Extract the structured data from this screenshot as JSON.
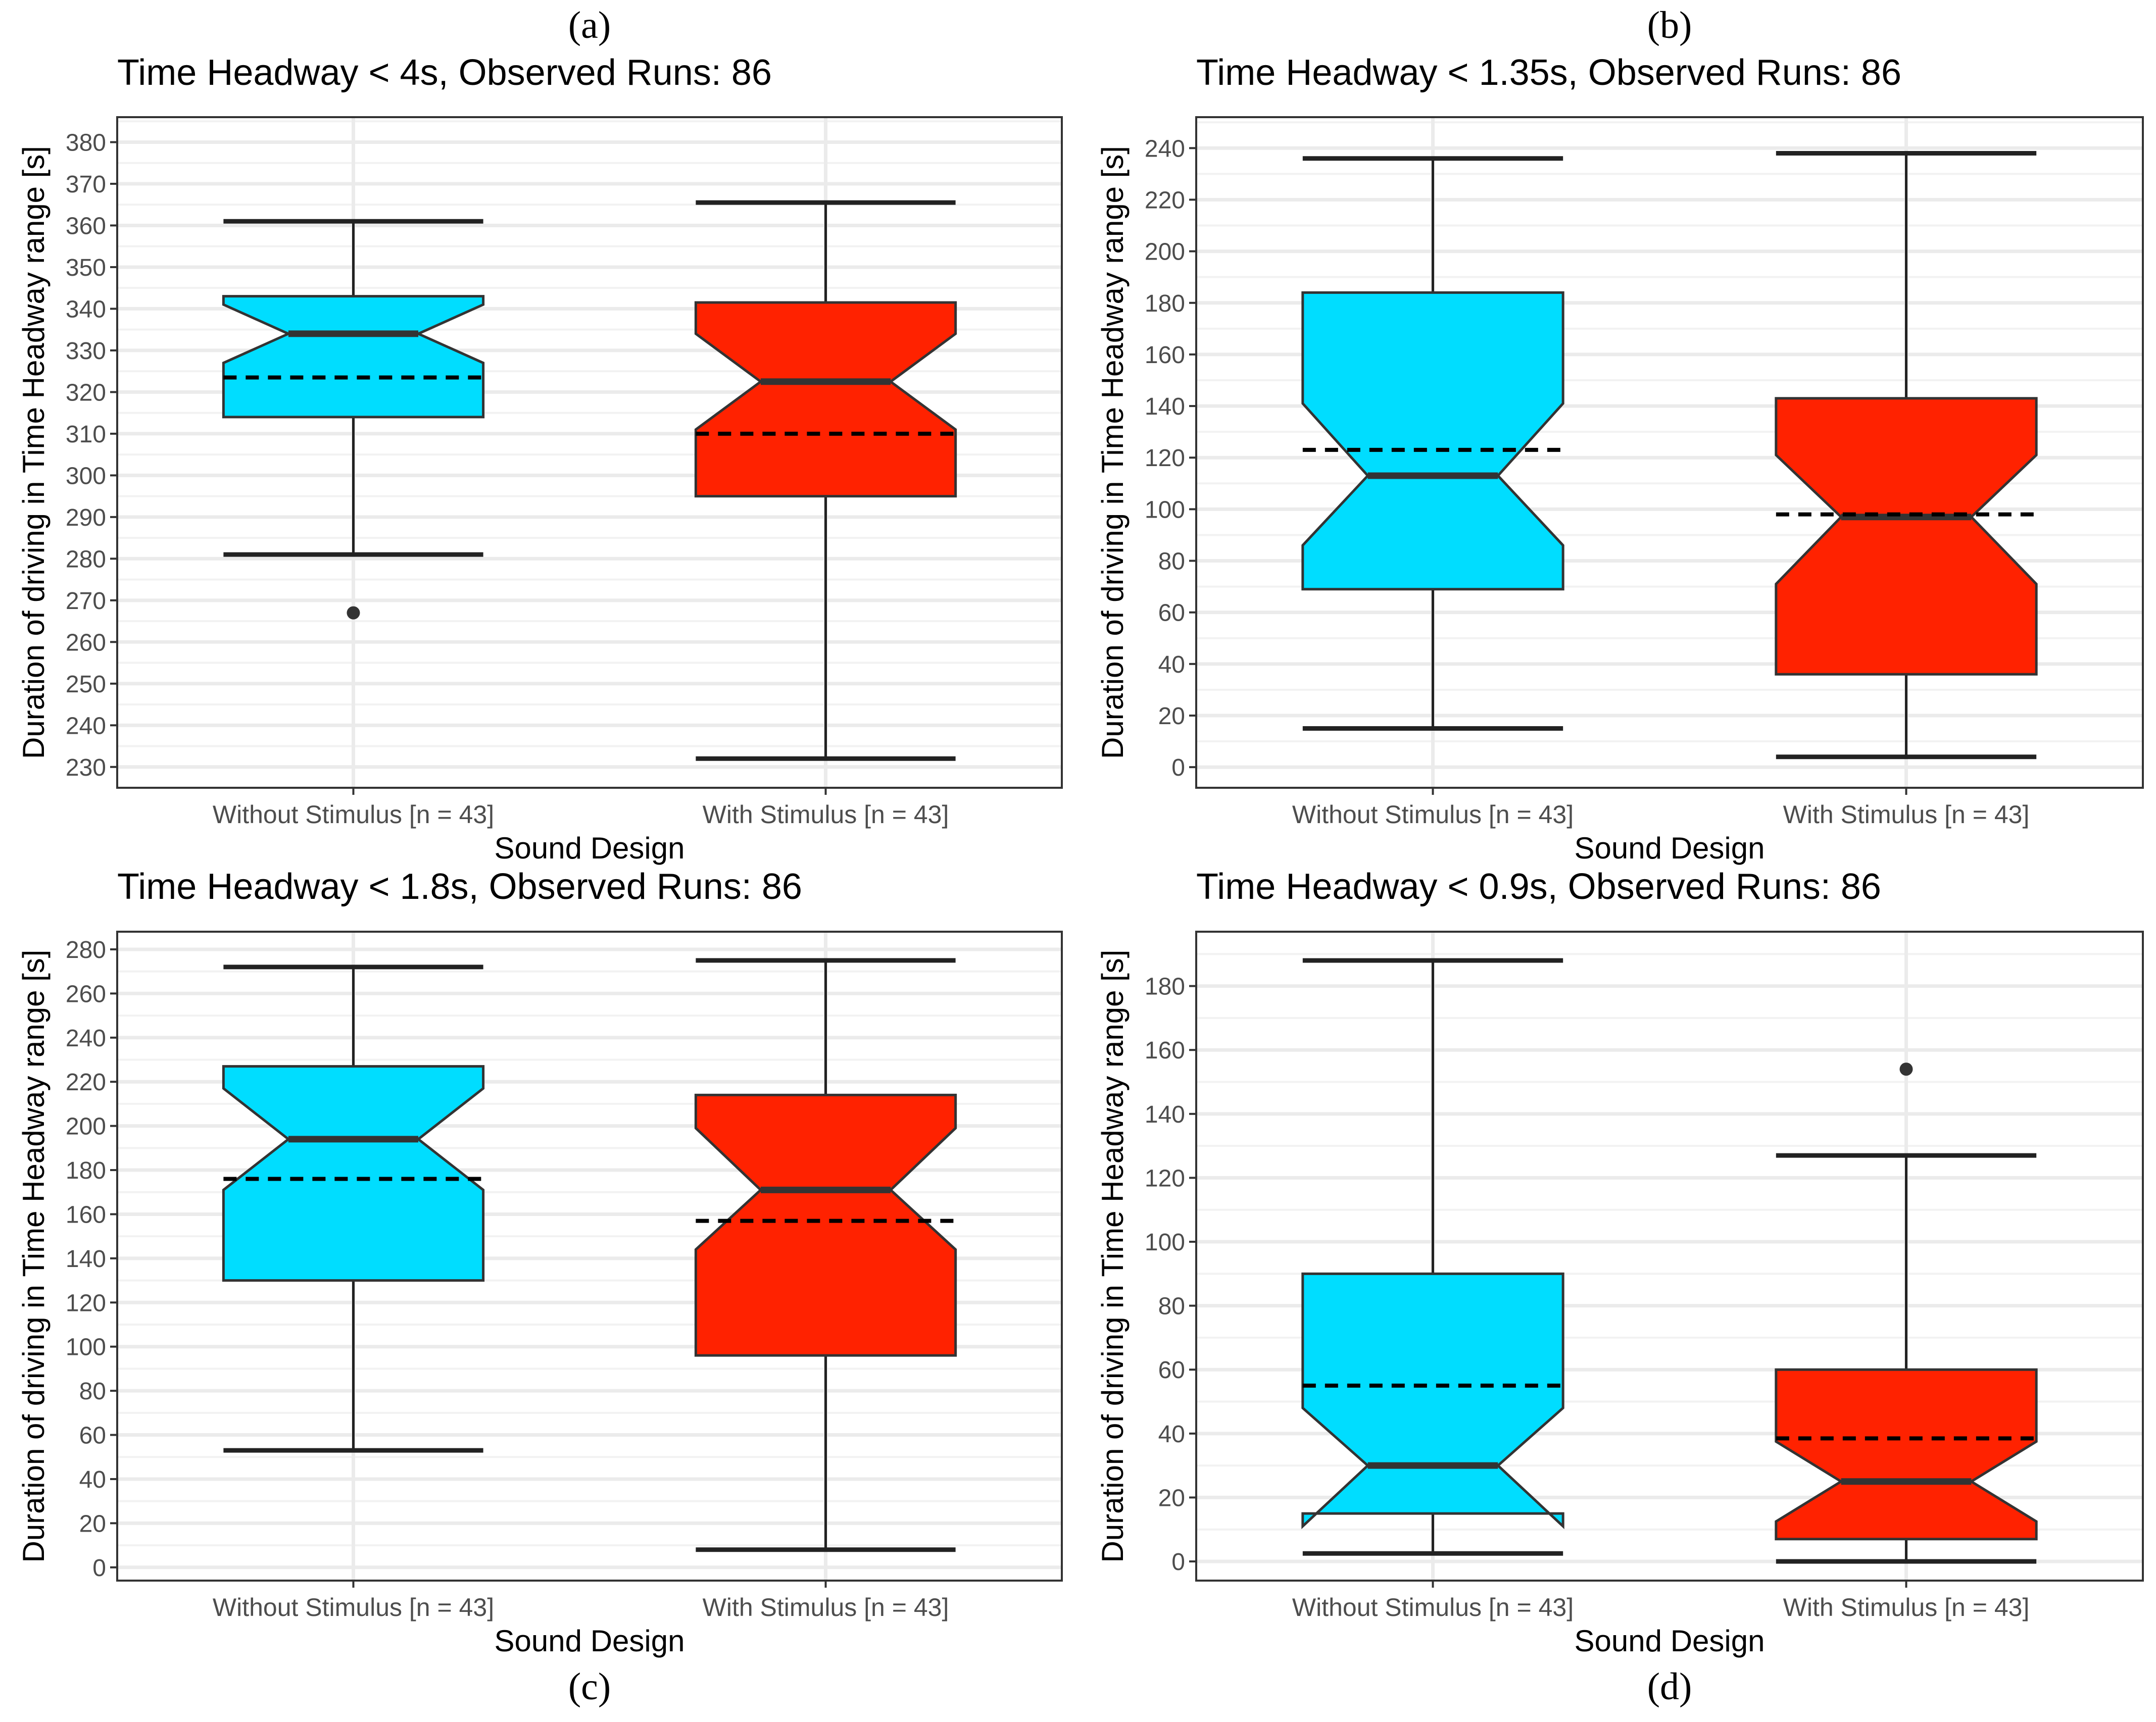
{
  "chart_data": [
    {
      "type": "boxplot",
      "panel_label": "(a)",
      "title": "Time Headway < 4s,  Observed Runs: 86",
      "xlabel": "Sound Design",
      "ylabel": "Duration of driving in Time Headway range [s]",
      "ylim": [
        225,
        386
      ],
      "yticks": [
        230,
        240,
        250,
        260,
        270,
        280,
        290,
        300,
        310,
        320,
        330,
        340,
        350,
        360,
        370,
        380
      ],
      "categories": [
        "Without Stimulus [n = 43]",
        "With Stimulus [n = 43]"
      ],
      "boxes": [
        {
          "name": "Without Stimulus [n = 43]",
          "color": "#00DDFF",
          "whisker_low": 281,
          "q1": 314,
          "notch_low": 327,
          "median": 334,
          "notch_high": 341,
          "q3": 343,
          "whisker_high": 361,
          "mean": 323.5,
          "outliers": [
            267
          ]
        },
        {
          "name": "With Stimulus [n = 43]",
          "color": "#FF2200",
          "whisker_low": 232,
          "q1": 295,
          "notch_low": 311,
          "median": 322.5,
          "notch_high": 334,
          "q3": 341.5,
          "whisker_high": 365.5,
          "mean": 310,
          "outliers": []
        }
      ]
    },
    {
      "type": "boxplot",
      "panel_label": "(b)",
      "title": "Time Headway < 1.35s,  Observed Runs: 86",
      "xlabel": "Sound Design",
      "ylabel": "Duration of driving in Time Headway range [s]",
      "ylim": [
        -8,
        252
      ],
      "yticks": [
        0,
        20,
        40,
        60,
        80,
        100,
        120,
        140,
        160,
        180,
        200,
        220,
        240
      ],
      "categories": [
        "Without Stimulus [n = 43]",
        "With Stimulus [n = 43]"
      ],
      "boxes": [
        {
          "name": "Without Stimulus [n = 43]",
          "color": "#00DDFF",
          "whisker_low": 15,
          "q1": 69,
          "notch_low": 86,
          "median": 113,
          "notch_high": 141,
          "q3": 184,
          "whisker_high": 236,
          "mean": 123,
          "outliers": []
        },
        {
          "name": "With Stimulus [n = 43]",
          "color": "#FF2200",
          "whisker_low": 4,
          "q1": 36,
          "notch_low": 71,
          "median": 97,
          "notch_high": 121,
          "q3": 143,
          "whisker_high": 238,
          "mean": 98,
          "outliers": []
        }
      ]
    },
    {
      "type": "boxplot",
      "panel_label": "(c)",
      "title": "Time Headway < 1.8s,  Observed Runs: 86",
      "xlabel": "Sound Design",
      "ylabel": "Duration of driving in Time Headway range [s]",
      "ylim": [
        -6,
        288
      ],
      "yticks": [
        0,
        20,
        40,
        60,
        80,
        100,
        120,
        140,
        160,
        180,
        200,
        220,
        240,
        260,
        280
      ],
      "categories": [
        "Without Stimulus [n = 43]",
        "With Stimulus [n = 43]"
      ],
      "boxes": [
        {
          "name": "Without Stimulus [n = 43]",
          "color": "#00DDFF",
          "whisker_low": 53,
          "q1": 130,
          "notch_low": 171,
          "median": 194,
          "notch_high": 217,
          "q3": 227,
          "whisker_high": 272,
          "mean": 176,
          "outliers": []
        },
        {
          "name": "With Stimulus [n = 43]",
          "color": "#FF2200",
          "whisker_low": 8,
          "q1": 96,
          "notch_low": 144,
          "median": 171,
          "notch_high": 199,
          "q3": 214,
          "whisker_high": 275,
          "mean": 157,
          "outliers": []
        }
      ]
    },
    {
      "type": "boxplot",
      "panel_label": "(d)",
      "title": "Time Headway < 0.9s,  Observed Runs: 86",
      "xlabel": "Sound Design",
      "ylabel": "Duration of driving in Time Headway range [s]",
      "ylim": [
        -6,
        197
      ],
      "yticks": [
        0,
        20,
        40,
        60,
        80,
        100,
        120,
        140,
        160,
        180
      ],
      "categories": [
        "Without Stimulus [n = 43]",
        "With Stimulus [n = 43]"
      ],
      "boxes": [
        {
          "name": "Without Stimulus [n = 43]",
          "color": "#00DDFF",
          "whisker_low": 2.5,
          "q1": 15,
          "notch_low": 11,
          "median": 30,
          "notch_high": 48,
          "q3": 90,
          "whisker_high": 188,
          "mean": 55,
          "outliers": []
        },
        {
          "name": "With Stimulus [n = 43]",
          "color": "#FF2200",
          "whisker_low": 0,
          "q1": 7,
          "notch_low": 12.5,
          "median": 25,
          "notch_high": 37.5,
          "q3": 60,
          "whisker_high": 127,
          "mean": 38.5,
          "outliers": [
            154
          ]
        }
      ]
    }
  ]
}
